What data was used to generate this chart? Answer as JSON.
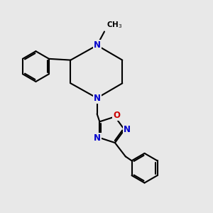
{
  "background_color": "#e8e8e8",
  "bond_color": "#000000",
  "N_color": "#0000cc",
  "O_color": "#cc0000",
  "line_width": 1.5,
  "font_size": 8.5,
  "xlim": [
    0,
    10
  ],
  "ylim": [
    0,
    10
  ]
}
